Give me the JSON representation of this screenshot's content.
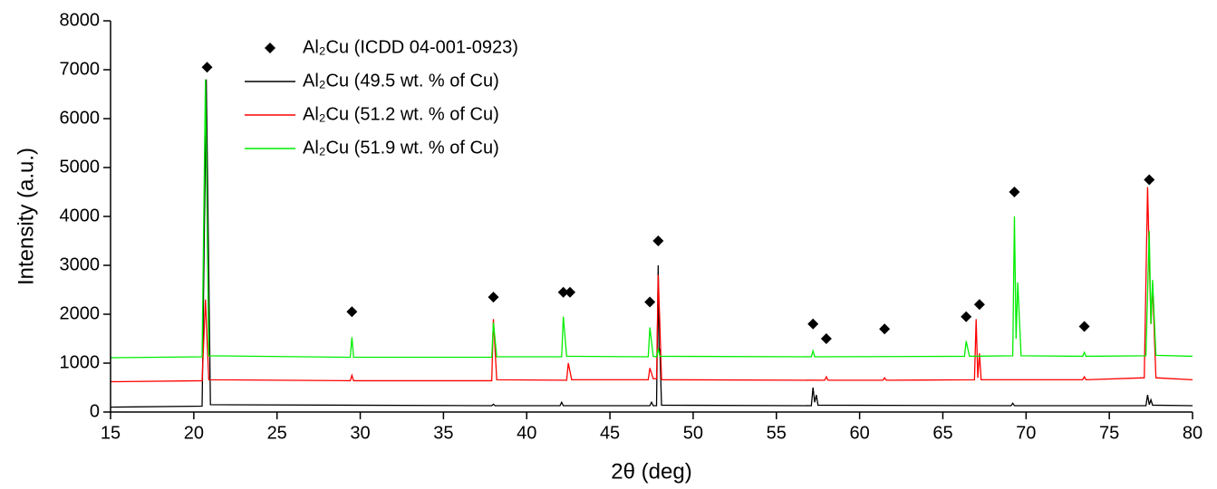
{
  "chart_data": {
    "type": "line",
    "xlabel": "2θ (deg)",
    "ylabel": "Intensity (a.u.)",
    "xlim": [
      15,
      80
    ],
    "xticks": [
      15,
      20,
      25,
      30,
      35,
      40,
      45,
      50,
      55,
      60,
      65,
      70,
      75,
      80
    ],
    "ylim": [
      0,
      8000
    ],
    "yticks": [
      0,
      1000,
      2000,
      3000,
      4000,
      5000,
      6000,
      7000,
      8000
    ],
    "grid": false,
    "legend": "top-left",
    "series": [
      {
        "name": "Al₂Cu (ICDD 04-001-0923)",
        "color": "#000000",
        "mode": "markers",
        "x": [
          20.8,
          29.5,
          38.0,
          42.2,
          42.6,
          47.4,
          47.9,
          57.2,
          58.0,
          61.5,
          66.4,
          67.2,
          69.3,
          73.5,
          77.4
        ],
        "values": [
          7050,
          2050,
          2350,
          2450,
          2450,
          2250,
          3500,
          1800,
          1500,
          1700,
          1950,
          2200,
          4500,
          1750,
          4750
        ]
      },
      {
        "name": "Al₂Cu (49.5 wt. % of Cu)",
        "color": "#000000",
        "mode": "line",
        "x": [
          15,
          20.5,
          20.75,
          21.0,
          37.9,
          38.0,
          38.1,
          42.0,
          42.1,
          42.2,
          47.4,
          47.5,
          47.6,
          47.8,
          47.9,
          47.95,
          48.0,
          48.1,
          57.1,
          57.2,
          57.3,
          57.4,
          57.5,
          69.1,
          69.2,
          69.3,
          77.2,
          77.3,
          77.4,
          77.5,
          77.6,
          80
        ],
        "values": [
          100,
          120,
          6800,
          150,
          130,
          160,
          130,
          130,
          200,
          130,
          130,
          200,
          130,
          130,
          3000,
          1200,
          1300,
          140,
          130,
          500,
          200,
          350,
          140,
          130,
          180,
          130,
          130,
          350,
          150,
          250,
          140,
          130
        ]
      },
      {
        "name": "Al₂Cu (51.2 wt. % of Cu)",
        "color": "#ff0000",
        "mode": "line",
        "x": [
          15,
          20.5,
          20.7,
          20.9,
          29.4,
          29.5,
          29.6,
          37.9,
          38.0,
          38.2,
          42.4,
          42.5,
          42.7,
          47.3,
          47.4,
          47.6,
          47.8,
          47.9,
          48.0,
          48.1,
          57.9,
          58.0,
          58.1,
          61.4,
          61.5,
          61.6,
          66.9,
          67.0,
          67.1,
          67.2,
          67.3,
          73.4,
          73.5,
          73.6,
          77.1,
          77.3,
          77.5,
          77.6,
          77.8,
          80
        ],
        "values": [
          620,
          640,
          2300,
          660,
          640,
          750,
          640,
          640,
          1900,
          660,
          650,
          1000,
          660,
          660,
          900,
          680,
          680,
          2800,
          1800,
          660,
          650,
          720,
          650,
          650,
          700,
          650,
          660,
          1900,
          700,
          1200,
          660,
          660,
          720,
          660,
          700,
          4600,
          1800,
          2600,
          700,
          660
        ]
      },
      {
        "name": "Al₂Cu (51.9 wt. % of Cu)",
        "color": "#00ee00",
        "mode": "line",
        "x": [
          15,
          20.5,
          20.7,
          20.9,
          29.4,
          29.5,
          29.6,
          37.9,
          38.0,
          38.2,
          42.1,
          42.2,
          42.4,
          47.3,
          47.4,
          47.6,
          47.8,
          47.9,
          48.0,
          57.1,
          57.2,
          57.3,
          66.3,
          66.4,
          66.6,
          69.2,
          69.3,
          69.4,
          69.5,
          69.7,
          73.4,
          73.5,
          73.6,
          77.2,
          77.4,
          77.5,
          77.6,
          77.8,
          80
        ],
        "values": [
          1110,
          1130,
          6800,
          1150,
          1120,
          1530,
          1120,
          1120,
          1830,
          1130,
          1130,
          1950,
          1140,
          1130,
          1730,
          1140,
          1130,
          1300,
          1140,
          1130,
          1250,
          1130,
          1140,
          1450,
          1140,
          1150,
          4000,
          1500,
          2650,
          1150,
          1140,
          1220,
          1140,
          1150,
          3700,
          1800,
          2700,
          1160,
          1140
        ]
      }
    ]
  }
}
